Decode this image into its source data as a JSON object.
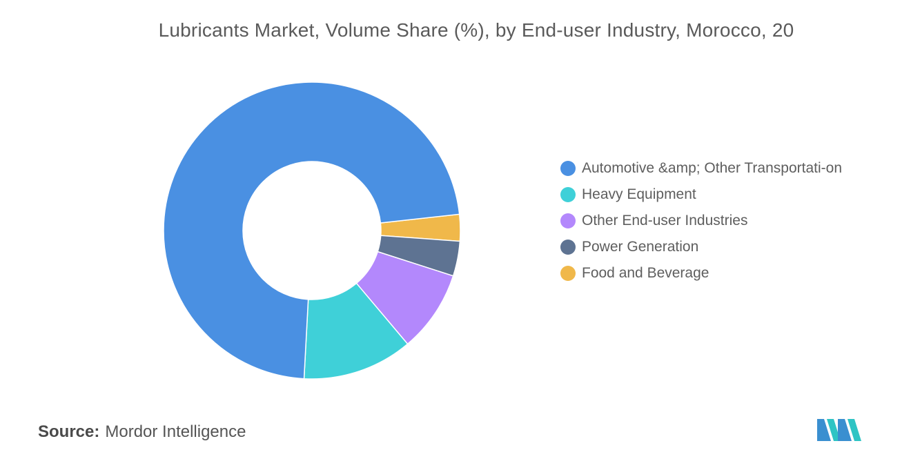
{
  "chart_data": {
    "type": "pie",
    "title": "Lubricants Market, Volume Share (%), by End-user Industry, Morocco, 20",
    "categories": [
      "Automotive &amp; Other Transportati-on",
      "Heavy Equipment",
      "Other End-user Industries",
      "Power Generation",
      "Food and Beverage"
    ],
    "values": [
      72.4,
      12.0,
      8.9,
      3.8,
      2.9
    ],
    "colors": [
      "#4a90e2",
      "#3fd0d8",
      "#b388fc",
      "#5e7392",
      "#f0b84a"
    ],
    "donut": true,
    "legend_position": "right"
  },
  "legend": {
    "items": [
      {
        "label": "Automotive &amp; Other Transportati-on",
        "color": "#4a90e2"
      },
      {
        "label": "Heavy Equipment",
        "color": "#3fd0d8"
      },
      {
        "label": "Other End-user Industries",
        "color": "#b388fc"
      },
      {
        "label": "Power Generation",
        "color": "#5e7392"
      },
      {
        "label": "Food and Beverage",
        "color": "#f0b84a"
      }
    ]
  },
  "source": {
    "label": "Source:",
    "text": "Mordor Intelligence"
  },
  "logo": {
    "icon": "mordor-intelligence-logo",
    "colors": [
      "#3a8fd0",
      "#2ec4c4"
    ]
  }
}
